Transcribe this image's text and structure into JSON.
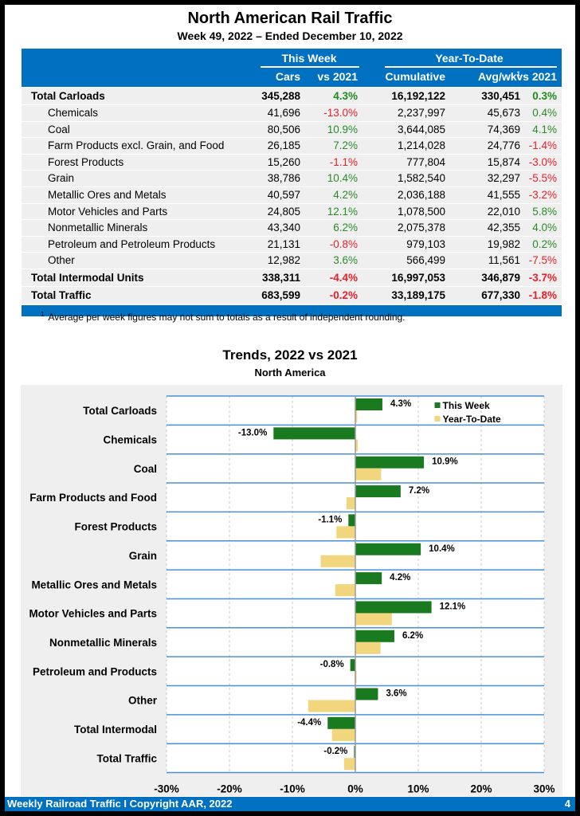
{
  "header": {
    "title": "North American Rail Traffic",
    "subtitle": "Week 49, 2022 – Ended December 10, 2022"
  },
  "table": {
    "groups": {
      "this_week": "This Week",
      "ytd": "Year-To-Date"
    },
    "columns": {
      "cars": "Cars",
      "tw_vs": "vs 2021",
      "cumulative": "Cumulative",
      "avgwk": "Avg/wk",
      "avgwk_sup": "1",
      "ytd_vs": "vs 2021"
    },
    "rows": [
      {
        "name": "Total Carloads",
        "cars": "345,288",
        "tw_vs": "4.3%",
        "cumulative": "16,192,122",
        "avgwk": "330,451",
        "ytd_vs": "0.3%",
        "style": "bold"
      },
      {
        "name": "Chemicals",
        "cars": "41,696",
        "tw_vs": "-13.0%",
        "cumulative": "2,237,997",
        "avgwk": "45,673",
        "ytd_vs": "0.4%",
        "style": "sub"
      },
      {
        "name": "Coal",
        "cars": "80,506",
        "tw_vs": "10.9%",
        "cumulative": "3,644,085",
        "avgwk": "74,369",
        "ytd_vs": "4.1%",
        "style": "sub"
      },
      {
        "name": "Farm Products excl. Grain, and Food",
        "cars": "26,185",
        "tw_vs": "7.2%",
        "cumulative": "1,214,028",
        "avgwk": "24,776",
        "ytd_vs": "-1.4%",
        "style": "sub"
      },
      {
        "name": "Forest Products",
        "cars": "15,260",
        "tw_vs": "-1.1%",
        "cumulative": "777,804",
        "avgwk": "15,874",
        "ytd_vs": "-3.0%",
        "style": "sub"
      },
      {
        "name": "Grain",
        "cars": "38,786",
        "tw_vs": "10.4%",
        "cumulative": "1,582,540",
        "avgwk": "32,297",
        "ytd_vs": "-5.5%",
        "style": "sub"
      },
      {
        "name": "Metallic Ores and Metals",
        "cars": "40,597",
        "tw_vs": "4.2%",
        "cumulative": "2,036,188",
        "avgwk": "41,555",
        "ytd_vs": "-3.2%",
        "style": "sub"
      },
      {
        "name": "Motor Vehicles and Parts",
        "cars": "24,805",
        "tw_vs": "12.1%",
        "cumulative": "1,078,500",
        "avgwk": "22,010",
        "ytd_vs": "5.8%",
        "style": "sub"
      },
      {
        "name": "Nonmetallic Minerals",
        "cars": "43,340",
        "tw_vs": "6.2%",
        "cumulative": "2,075,378",
        "avgwk": "42,355",
        "ytd_vs": "4.0%",
        "style": "sub"
      },
      {
        "name": "Petroleum and Petroleum Products",
        "cars": "21,131",
        "tw_vs": "-0.8%",
        "cumulative": "979,103",
        "avgwk": "19,982",
        "ytd_vs": "0.2%",
        "style": "sub"
      },
      {
        "name": "Other",
        "cars": "12,982",
        "tw_vs": "3.6%",
        "cumulative": "566,499",
        "avgwk": "11,561",
        "ytd_vs": "-7.5%",
        "style": "sub"
      },
      {
        "name": "Total Intermodal Units",
        "cars": "338,311",
        "tw_vs": "-4.4%",
        "cumulative": "16,997,053",
        "avgwk": "346,879",
        "ytd_vs": "-3.7%",
        "style": "bold"
      },
      {
        "name": "Total Traffic",
        "cars": "683,599",
        "tw_vs": "-0.2%",
        "cumulative": "33,189,175",
        "avgwk": "677,330",
        "ytd_vs": "-1.8%",
        "style": "bold"
      }
    ],
    "footnote_marker": "1",
    "footnote": "Average per week figures may not sum to totals as a result of independent rounding."
  },
  "colors": {
    "brand_blue": "#0070c0",
    "positive": "#2a8a2a",
    "negative": "#e8202a",
    "this_week_bar": "#1a7a1f",
    "ytd_bar": "#f2d67e",
    "row_grid": "#4a90d9"
  },
  "chart_data": {
    "type": "bar",
    "orientation": "horizontal",
    "title": "Trends, 2022 vs 2021",
    "subtitle": "North America",
    "categories": [
      "Total Carloads",
      "Chemicals",
      "Coal",
      "Farm Products and Food",
      "Forest Products",
      "Grain",
      "Metallic Ores and Metals",
      "Motor Vehicles and Parts",
      "Nonmetallic Minerals",
      "Petroleum and Products",
      "Other",
      "Total Intermodal",
      "Total Traffic"
    ],
    "series": [
      {
        "name": "This Week",
        "values": [
          4.3,
          -13.0,
          10.9,
          7.2,
          -1.1,
          10.4,
          4.2,
          12.1,
          6.2,
          -0.8,
          3.6,
          -4.4,
          -0.2
        ],
        "labels": [
          "4.3%",
          "-13.0%",
          "10.9%",
          "7.2%",
          "-1.1%",
          "10.4%",
          "4.2%",
          "12.1%",
          "6.2%",
          "-0.8%",
          "3.6%",
          "-4.4%",
          "-0.2%"
        ]
      },
      {
        "name": "Year-To-Date",
        "values": [
          0.3,
          0.4,
          4.1,
          -1.4,
          -3.0,
          -5.5,
          -3.2,
          5.8,
          4.0,
          0.2,
          -7.5,
          -3.7,
          -1.8
        ]
      }
    ],
    "xlim": [
      -30,
      30
    ],
    "xticks": [
      -30,
      -20,
      -10,
      0,
      10,
      20,
      30
    ],
    "xtick_labels": [
      "-30%",
      "-20%",
      "-10%",
      "0%",
      "10%",
      "20%",
      "30%"
    ],
    "xlabel": "",
    "ylabel": "",
    "grid": true,
    "legend": "top-right"
  },
  "footer": {
    "left": "Weekly Railroad Traffic I Copyright AAR, 2022",
    "page": "4"
  }
}
